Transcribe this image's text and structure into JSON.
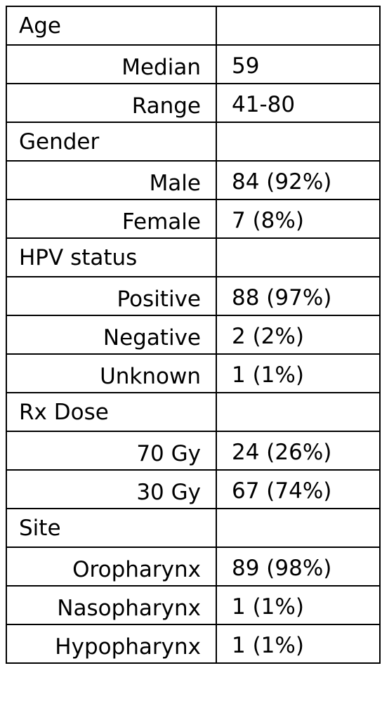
{
  "table": {
    "rows": [
      {
        "label": "Age",
        "value": "",
        "kind": "head"
      },
      {
        "label": "Median",
        "value": "59",
        "kind": "sub"
      },
      {
        "label": "Range",
        "value": "41-80",
        "kind": "sub"
      },
      {
        "label": "Gender",
        "value": "",
        "kind": "head"
      },
      {
        "label": "Male",
        "value": "84 (92%)",
        "kind": "sub"
      },
      {
        "label": "Female",
        "value": "7 (8%)",
        "kind": "sub"
      },
      {
        "label": "HPV status",
        "value": "",
        "kind": "head"
      },
      {
        "label": "Positive",
        "value": "88 (97%)",
        "kind": "sub"
      },
      {
        "label": "Negative",
        "value": "2 (2%)",
        "kind": "sub"
      },
      {
        "label": "Unknown",
        "value": "1 (1%)",
        "kind": "sub"
      },
      {
        "label": "Rx Dose",
        "value": "",
        "kind": "head"
      },
      {
        "label": "70 Gy",
        "value": "24 (26%)",
        "kind": "sub"
      },
      {
        "label": "30 Gy",
        "value": "67 (74%)",
        "kind": "sub"
      },
      {
        "label": "Site",
        "value": "",
        "kind": "head"
      },
      {
        "label": "Oropharynx",
        "value": "89 (98%)",
        "kind": "sub"
      },
      {
        "label": "Nasopharynx",
        "value": "1 (1%)",
        "kind": "sub"
      },
      {
        "label": "Hypopharynx",
        "value": "1 (1%)",
        "kind": "sub"
      }
    ]
  }
}
